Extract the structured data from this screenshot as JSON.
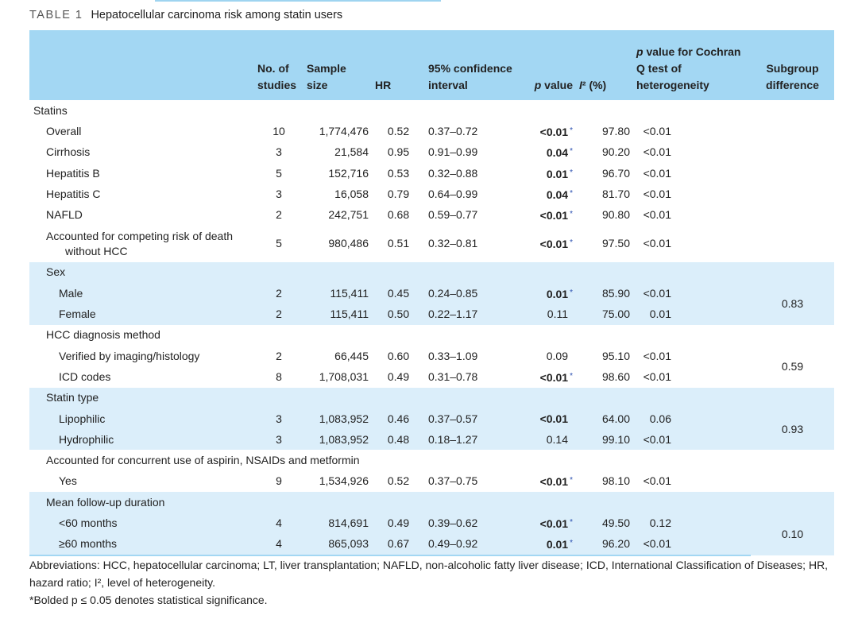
{
  "caption": {
    "label": "TABLE 1",
    "title": "Hepatocellular carcinoma risk among statin users"
  },
  "table": {
    "header": [
      "No. of studies",
      "Sample size",
      "HR",
      "95% confidence interval",
      "p value",
      "I² (%)",
      "p value for Cochran Q test of heterogeneity",
      "Subgroup difference"
    ],
    "group": "Statins",
    "rows": [
      {
        "label": "Overall",
        "studies": "10",
        "sample_size": "1,774,476",
        "hr": "0.52",
        "ci": "0.37–0.72",
        "p": {
          "text": "<0.01",
          "bold": true,
          "mark": "*"
        },
        "i2": "97.80",
        "q_p": "<0.01"
      },
      {
        "label": "Cirrhosis",
        "studies": "3",
        "sample_size": "21,584",
        "hr": "0.95",
        "ci": "0.91–0.99",
        "p": {
          "text": "0.04",
          "bold": true,
          "mark": "*"
        },
        "i2": "90.20",
        "q_p": "<0.01"
      },
      {
        "label": "Hepatitis B",
        "studies": "5",
        "sample_size": "152,716",
        "hr": "0.53",
        "ci": "0.32–0.88",
        "p": {
          "text": "0.01",
          "bold": true,
          "mark": "*"
        },
        "i2": "96.70",
        "q_p": "<0.01"
      },
      {
        "label": "Hepatitis C",
        "studies": "3",
        "sample_size": "16,058",
        "hr": "0.79",
        "ci": "0.64–0.99",
        "p": {
          "text": "0.04",
          "bold": true,
          "mark": "*"
        },
        "i2": "81.70",
        "q_p": "<0.01"
      },
      {
        "label": "NAFLD",
        "studies": "2",
        "sample_size": "242,751",
        "hr": "0.68",
        "ci": "0.59–0.77",
        "p": {
          "text": "<0.01",
          "bold": true,
          "mark": "*"
        },
        "i2": "90.80",
        "q_p": "<0.01"
      },
      {
        "label": "Accounted for competing risk of death without HCC",
        "studies": "5",
        "sample_size": "980,486",
        "hr": "0.51",
        "ci": "0.32–0.81",
        "p": {
          "text": "<0.01",
          "bold": true,
          "mark": "*"
        },
        "i2": "97.50",
        "q_p": "<0.01"
      }
    ],
    "subgroups": [
      {
        "title": "Sex",
        "shaded": true,
        "subgroup_difference": "0.83",
        "rows": [
          {
            "label": "Male",
            "studies": "2",
            "sample_size": "115,411",
            "hr": "0.45",
            "ci": "0.24–0.85",
            "p": {
              "text": "0.01",
              "bold": true,
              "mark": "*"
            },
            "i2": "85.90",
            "q_p": "<0.01"
          },
          {
            "label": "Female",
            "studies": "2",
            "sample_size": "115,411",
            "hr": "0.50",
            "ci": "0.22–1.17",
            "p": {
              "text": "0.11",
              "bold": false
            },
            "i2": "75.00",
            "q_p": "0.01"
          }
        ]
      },
      {
        "title": "HCC diagnosis method",
        "shaded": false,
        "subgroup_difference": "0.59",
        "rows": [
          {
            "label": "Verified by imaging/histology",
            "studies": "2",
            "sample_size": "66,445",
            "hr": "0.60",
            "ci": "0.33–1.09",
            "p": {
              "text": "0.09",
              "bold": false
            },
            "i2": "95.10",
            "q_p": "<0.01"
          },
          {
            "label": "ICD codes",
            "studies": "8",
            "sample_size": "1,708,031",
            "hr": "0.49",
            "ci": "0.31–0.78",
            "p": {
              "text": "<0.01",
              "bold": true,
              "mark": "*"
            },
            "i2": "98.60",
            "q_p": "<0.01"
          }
        ]
      },
      {
        "title": "Statin type",
        "shaded": true,
        "subgroup_difference": "0.93",
        "rows": [
          {
            "label": "Lipophilic",
            "studies": "3",
            "sample_size": "1,083,952",
            "hr": "0.46",
            "ci": "0.37–0.57",
            "p": {
              "text": "<0.01",
              "bold": true
            },
            "i2": "64.00",
            "q_p": "0.06"
          },
          {
            "label": "Hydrophilic",
            "studies": "3",
            "sample_size": "1,083,952",
            "hr": "0.48",
            "ci": "0.18–1.27",
            "p": {
              "text": "0.14",
              "bold": false
            },
            "i2": "99.10",
            "q_p": "<0.01"
          }
        ]
      },
      {
        "title": "Accounted for concurrent use of aspirin, NSAIDs and metformin",
        "shaded": false,
        "rows": [
          {
            "label": "Yes",
            "studies": "9",
            "sample_size": "1,534,926",
            "hr": "0.52",
            "ci": "0.37–0.75",
            "p": {
              "text": "<0.01",
              "bold": true,
              "mark": "*"
            },
            "i2": "98.10",
            "q_p": "<0.01"
          }
        ]
      },
      {
        "title": "Mean follow-up duration",
        "shaded": true,
        "subgroup_difference": "0.10",
        "rows": [
          {
            "label": "<60 months",
            "studies": "4",
            "sample_size": "814,691",
            "hr": "0.49",
            "ci": "0.39–0.62",
            "p": {
              "text": "<0.01",
              "bold": true,
              "mark": "*"
            },
            "i2": "49.50",
            "q_p": "0.12"
          },
          {
            "label": "≥60 months",
            "studies": "4",
            "sample_size": "865,093",
            "hr": "0.67",
            "ci": "0.49–0.92",
            "p": {
              "text": "0.01",
              "bold": true,
              "mark": "*"
            },
            "i2": "96.20",
            "q_p": "<0.01"
          }
        ]
      }
    ]
  },
  "footnotes": [
    "Abbreviations: HCC, hepatocellular carcinoma; LT, liver transplantation; NAFLD, non-alcoholic fatty liver disease; ICD, International Classification of Diseases; HR, hazard ratio; I², level of heterogeneity.",
    "*Bolded p ≤ 0.05 denotes statistical significance."
  ]
}
